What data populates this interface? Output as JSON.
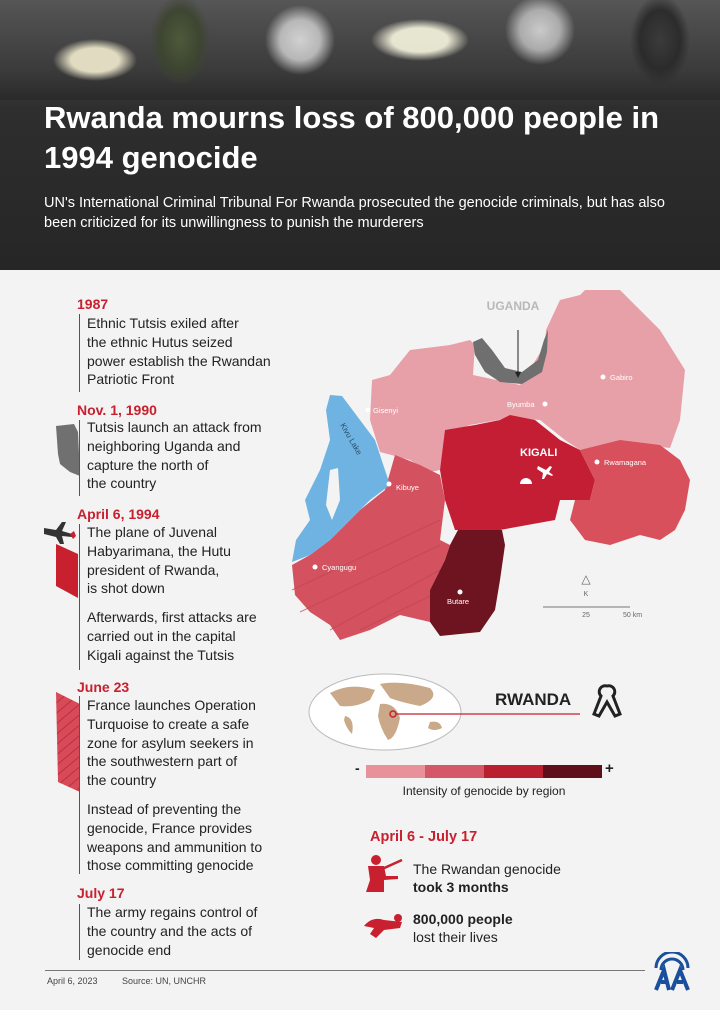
{
  "header": {
    "title": "Rwanda mourns loss of 800,000 people in 1994 genocide",
    "subtitle": "UN's International Criminal Tribunal For Rwanda prosecuted the genocide criminals, but has also been criticized for its unwillingness to punish the murderers"
  },
  "timeline": [
    {
      "date": "1987",
      "lines": [
        "Ethnic Tutsis exiled after",
        "the ethnic Hutus seized",
        "power establish the Rwandan",
        "Patriotic Front"
      ]
    },
    {
      "date": "Nov. 1, 1990",
      "lines": [
        "Tutsis launch an attack from",
        "neighboring Uganda and",
        "capture the north of",
        "the country"
      ]
    },
    {
      "date": "April 6, 1994",
      "lines": [
        "The plane of Juvenal",
        "Habyarimana, the Hutu",
        "president of Rwanda,",
        "is shot down"
      ],
      "extra": [
        "Afterwards, first attacks are",
        "carried out in the capital",
        "Kigali against the Tutsis"
      ]
    },
    {
      "date": "June 23",
      "lines": [
        "France launches Operation",
        "Turquoise to create a safe",
        "zone for asylum seekers in",
        "the southwestern part of",
        "the country"
      ],
      "extra": [
        "Instead of preventing the",
        "genocide, France provides",
        "weapons and ammunition to",
        "those committing genocide"
      ]
    },
    {
      "date": "July 17",
      "lines": [
        "The army regains control of",
        "the country and the acts of",
        "genocide end"
      ]
    }
  ],
  "map": {
    "neighbor": "UGANDA",
    "lake": "Kivu Lake",
    "capital": "KIGALI",
    "cities": [
      "Gisenyi",
      "Byumba",
      "Gabiro",
      "Kibuye",
      "Rwamagana",
      "Cyangugu",
      "Butare"
    ],
    "north_label": "K",
    "scale": [
      "25",
      "50 km"
    ],
    "region_colors": {
      "low": "#e8a0a8",
      "medium": "#d4525f",
      "high": "#c41e35",
      "highest": "#6e1420",
      "lake": "#6fb3e3",
      "uganda_strip": "#6f6f6f"
    }
  },
  "inset": {
    "label": "RWANDA"
  },
  "legend": {
    "minus": "-",
    "plus": "+",
    "label": "Intensity of genocide by region",
    "colors": [
      "#e8919b",
      "#d45867",
      "#b8202f",
      "#5e0f19"
    ]
  },
  "stats": {
    "period": "April 6 - July 17",
    "items": [
      {
        "line1": "The Rwandan genocide",
        "line2": "took 3 months",
        "icon": "soldier-icon"
      },
      {
        "line1": "800,000 people",
        "line2": "lost their lives",
        "icon": "fallen-body-icon"
      }
    ]
  },
  "footer": {
    "date": "April 6, 2023",
    "source": "Source: UN, UNCHR",
    "logo": "AA"
  },
  "colors": {
    "accent": "#c8202f",
    "logo": "#1a4f9c"
  }
}
